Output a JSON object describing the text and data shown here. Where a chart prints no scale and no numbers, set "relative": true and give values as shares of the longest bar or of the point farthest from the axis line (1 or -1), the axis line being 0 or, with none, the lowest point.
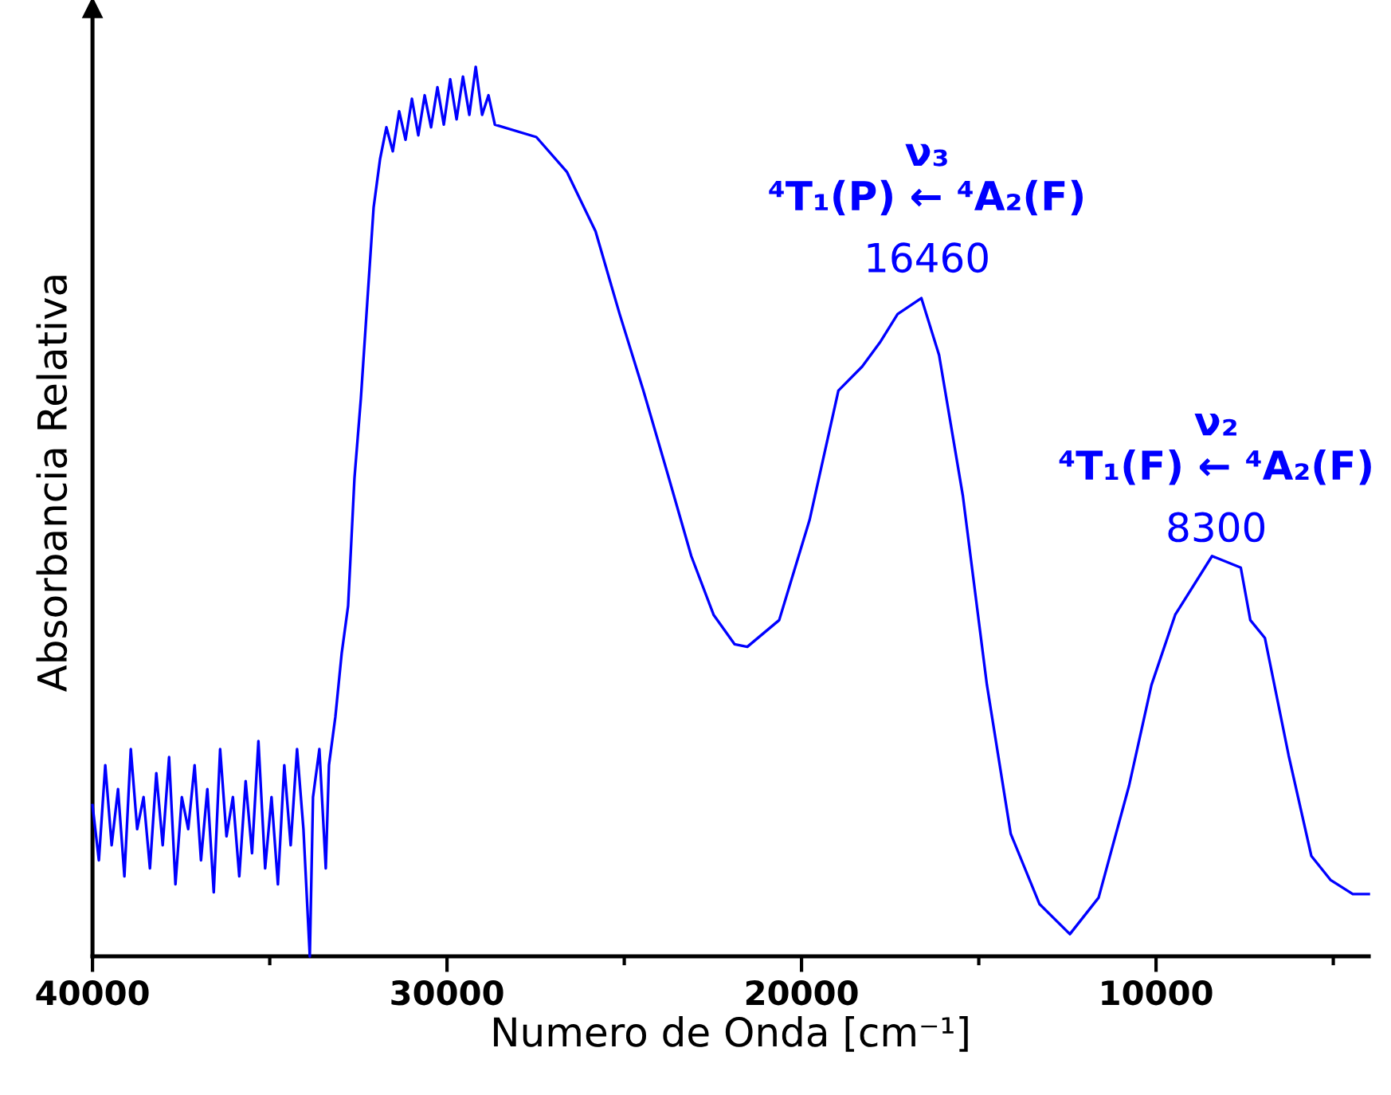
{
  "chart_data": {
    "type": "line",
    "relative": true,
    "xlabel": "Numero de Onda [cm⁻¹]",
    "ylabel": "Absorbancia Relativa",
    "xlim": [
      40000,
      4000
    ],
    "xticks": [
      40000,
      {
        "value": 35000,
        "label": null
      },
      30000,
      {
        "value": 25000,
        "label": null
      },
      20000,
      {
        "value": 15000,
        "label": null
      },
      10000,
      {
        "value": 5000,
        "label": null
      }
    ],
    "tick_labels": "x",
    "grid": false,
    "legend": false,
    "annotations": [
      "ν₃",
      "⁴T₁(P) ← ⁴A₂(F)",
      {
        "text": "16460",
        "x": 16460,
        "y": 0.74
      },
      "ν₂",
      "⁴T₁(F) ← ⁴A₂(F)",
      {
        "text": "8300",
        "x": 8300,
        "y": 0.437
      }
    ],
    "series": [
      {
        "color": "#0000ff",
        "x": [
          40000,
          39820,
          39640,
          39460,
          39280,
          39100,
          38920,
          38740,
          38560,
          38380,
          38200,
          38020,
          37840,
          37660,
          37480,
          37300,
          37120,
          36940,
          36760,
          36580,
          36400,
          36220,
          36040,
          35860,
          35680,
          35500,
          35320,
          35130,
          34950,
          34770,
          34590,
          34410,
          34230,
          34050,
          33870,
          33780,
          33600,
          33420,
          33330,
          33150,
          32970,
          32790,
          32610,
          32430,
          32250,
          32070,
          31890,
          31710,
          31530,
          31350,
          31170,
          30990,
          30810,
          30630,
          30450,
          30270,
          30090,
          29910,
          29730,
          29550,
          29370,
          29190,
          29010,
          28830,
          28650,
          27480,
          26620,
          25810,
          25130,
          24460,
          23780,
          23110,
          22480,
          21890,
          21530,
          20630,
          19770,
          18960,
          18290,
          17790,
          17290,
          16620,
          16120,
          15450,
          14770,
          14100,
          13290,
          12430,
          11620,
          10760,
          10130,
          9460,
          8420,
          7610,
          7340,
          6930,
          6260,
          5620,
          5080,
          4450,
          4000
        ],
        "values": [
          0.17,
          0.108,
          0.215,
          0.125,
          0.188,
          0.09,
          0.233,
          0.143,
          0.179,
          0.099,
          0.206,
          0.125,
          0.224,
          0.081,
          0.179,
          0.143,
          0.215,
          0.108,
          0.188,
          0.072,
          0.233,
          0.135,
          0.179,
          0.09,
          0.197,
          0.116,
          0.242,
          0.099,
          0.179,
          0.081,
          0.215,
          0.125,
          0.233,
          0.143,
          0.0,
          0.179,
          0.233,
          0.099,
          0.215,
          0.269,
          0.341,
          0.394,
          0.538,
          0.627,
          0.735,
          0.842,
          0.896,
          0.932,
          0.905,
          0.95,
          0.918,
          0.964,
          0.923,
          0.968,
          0.932,
          0.977,
          0.935,
          0.986,
          0.941,
          0.989,
          0.946,
          1.0,
          0.946,
          0.968,
          0.935,
          0.921,
          0.882,
          0.815,
          0.722,
          0.636,
          0.543,
          0.45,
          0.384,
          0.351,
          0.348,
          0.378,
          0.491,
          0.636,
          0.663,
          0.69,
          0.722,
          0.74,
          0.676,
          0.518,
          0.305,
          0.138,
          0.059,
          0.025,
          0.066,
          0.192,
          0.305,
          0.384,
          0.45,
          0.437,
          0.378,
          0.358,
          0.226,
          0.113,
          0.086,
          0.07,
          0.07
        ]
      }
    ]
  }
}
